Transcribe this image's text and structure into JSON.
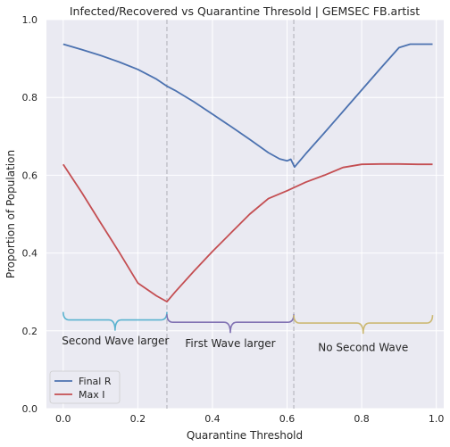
{
  "chart_data": {
    "type": "line",
    "title": "Infected/Recovered vs Quarantine Thresold | GEMSEC FB.artist",
    "xlabel": "Quarantine Threshold",
    "ylabel": "Proportion of Population",
    "xlim": [
      -0.045,
      1.02
    ],
    "ylim": [
      0.0,
      1.0
    ],
    "xticks": [
      0.0,
      0.2,
      0.4,
      0.6,
      0.8,
      1.0
    ],
    "xtick_labels": [
      "0.0",
      "0.2",
      "0.4",
      "0.6",
      "0.8",
      "1.0"
    ],
    "yticks": [
      0.0,
      0.2,
      0.4,
      0.6,
      0.8,
      1.0
    ],
    "ytick_labels": [
      "0.0",
      "0.2",
      "0.4",
      "0.6",
      "0.8",
      "1.0"
    ],
    "grid": true,
    "legend_placement": "lower-left",
    "series": [
      {
        "name": "Final R",
        "color": "#4c72b0",
        "x": [
          0.0,
          0.05,
          0.1,
          0.15,
          0.2,
          0.25,
          0.278,
          0.3,
          0.35,
          0.4,
          0.45,
          0.5,
          0.55,
          0.58,
          0.6,
          0.61,
          0.62,
          0.65,
          0.7,
          0.75,
          0.8,
          0.85,
          0.9,
          0.93,
          0.95,
          0.99
        ],
        "values": [
          0.937,
          0.923,
          0.908,
          0.891,
          0.872,
          0.847,
          0.829,
          0.818,
          0.789,
          0.757,
          0.725,
          0.692,
          0.658,
          0.642,
          0.637,
          0.641,
          0.621,
          0.655,
          0.709,
          0.764,
          0.819,
          0.874,
          0.928,
          0.937,
          0.937,
          0.937
        ]
      },
      {
        "name": "Max I",
        "color": "#c44e52",
        "x": [
          0.0,
          0.05,
          0.1,
          0.15,
          0.2,
          0.25,
          0.278,
          0.3,
          0.35,
          0.4,
          0.45,
          0.5,
          0.55,
          0.6,
          0.65,
          0.7,
          0.75,
          0.8,
          0.85,
          0.9,
          0.95,
          0.99
        ],
        "values": [
          0.628,
          0.555,
          0.478,
          0.402,
          0.323,
          0.29,
          0.275,
          0.3,
          0.353,
          0.404,
          0.452,
          0.5,
          0.54,
          0.56,
          0.582,
          0.6,
          0.62,
          0.628,
          0.629,
          0.629,
          0.628,
          0.628
        ]
      }
    ],
    "vlines": [
      0.278,
      0.618
    ],
    "annotations": [
      {
        "text": "Second Wave larger",
        "x_from": 0.0,
        "x_to": 0.278,
        "y": 0.228,
        "color": "#5bb3d0",
        "label_x": 0.14,
        "label_y": 0.165
      },
      {
        "text": "First Wave larger",
        "x_from": 0.278,
        "x_to": 0.618,
        "y": 0.222,
        "color": "#8172b3",
        "label_x": 0.448,
        "label_y": 0.158
      },
      {
        "text": "No Second Wave",
        "x_from": 0.618,
        "x_to": 0.99,
        "y": 0.22,
        "color": "#ccb974",
        "label_x": 0.804,
        "label_y": 0.148
      }
    ]
  }
}
